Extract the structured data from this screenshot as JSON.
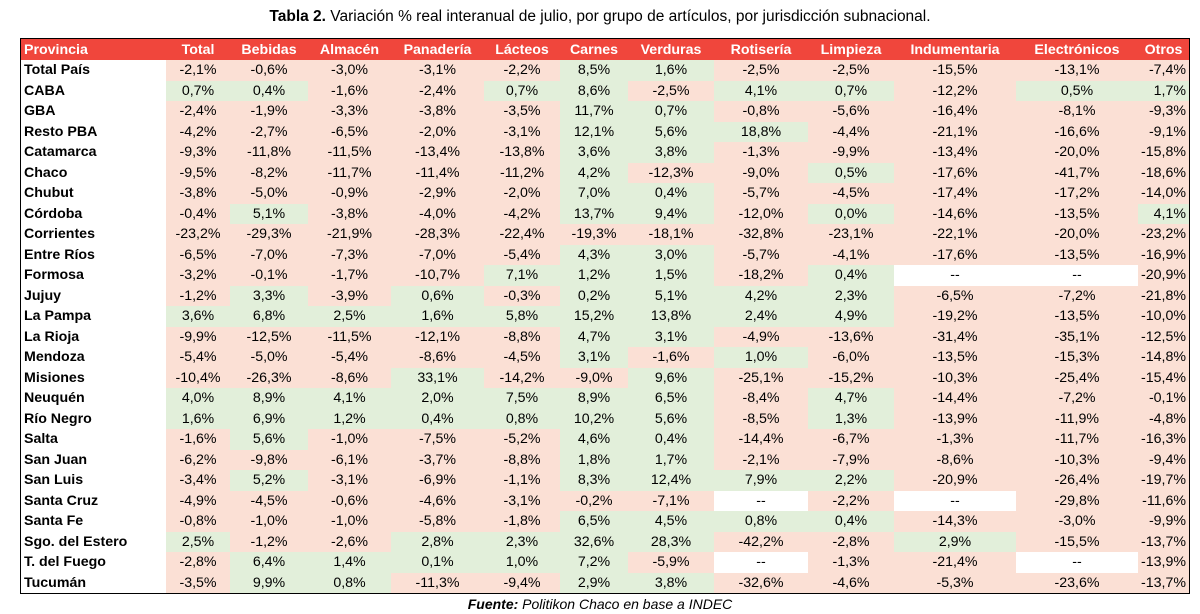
{
  "title": {
    "bold": "Tabla 2.",
    "rest": " Variación % real interanual de julio, por grupo de artículos, por jurisdicción subnacional."
  },
  "table": {
    "headers": [
      "Provincia",
      "Total",
      "Bebidas",
      "Almacén",
      "Panadería",
      "Lácteos",
      "Carnes",
      "Verduras",
      "Rotisería",
      "Limpieza",
      "Indumentaria",
      "Electrónicos",
      "Otros"
    ],
    "rows": [
      {
        "name": "Total País",
        "values": [
          "-2,1%",
          "-0,6%",
          "-3,0%",
          "-3,1%",
          "-2,2%",
          "8,5%",
          "1,6%",
          "-2,5%",
          "-2,5%",
          "-15,5%",
          "-13,1%",
          "-7,4%"
        ]
      },
      {
        "name": "CABA",
        "values": [
          "0,7%",
          "0,4%",
          "-1,6%",
          "-2,4%",
          "0,7%",
          "8,6%",
          "-2,5%",
          "4,1%",
          "0,7%",
          "-12,2%",
          "0,5%",
          "1,7%"
        ]
      },
      {
        "name": "GBA",
        "values": [
          "-2,4%",
          "-1,9%",
          "-3,3%",
          "-3,8%",
          "-3,5%",
          "11,7%",
          "0,7%",
          "-0,8%",
          "-5,6%",
          "-16,4%",
          "-8,1%",
          "-9,3%"
        ]
      },
      {
        "name": "Resto PBA",
        "values": [
          "-4,2%",
          "-2,7%",
          "-6,5%",
          "-2,0%",
          "-3,1%",
          "12,1%",
          "5,6%",
          "18,8%",
          "-4,4%",
          "-21,1%",
          "-16,6%",
          "-9,1%"
        ]
      },
      {
        "name": "Catamarca",
        "values": [
          "-9,3%",
          "-11,8%",
          "-11,5%",
          "-13,4%",
          "-13,8%",
          "3,6%",
          "3,8%",
          "-1,3%",
          "-9,9%",
          "-13,4%",
          "-20,0%",
          "-15,8%"
        ]
      },
      {
        "name": "Chaco",
        "values": [
          "-9,5%",
          "-8,2%",
          "-11,7%",
          "-11,4%",
          "-11,2%",
          "4,2%",
          "-12,3%",
          "-9,0%",
          "0,5%",
          "-17,6%",
          "-41,7%",
          "-18,6%"
        ]
      },
      {
        "name": "Chubut",
        "values": [
          "-3,8%",
          "-5,0%",
          "-0,9%",
          "-2,9%",
          "-2,0%",
          "7,0%",
          "0,4%",
          "-5,7%",
          "-4,5%",
          "-17,4%",
          "-17,2%",
          "-14,0%"
        ]
      },
      {
        "name": "Córdoba",
        "values": [
          "-0,4%",
          "5,1%",
          "-3,8%",
          "-4,0%",
          "-4,2%",
          "13,7%",
          "9,4%",
          "-12,0%",
          "0,0%",
          "-14,6%",
          "-13,5%",
          "4,1%"
        ]
      },
      {
        "name": "Corrientes",
        "values": [
          "-23,2%",
          "-29,3%",
          "-21,9%",
          "-28,3%",
          "-22,4%",
          "-19,3%",
          "-18,1%",
          "-32,8%",
          "-23,1%",
          "-22,1%",
          "-20,0%",
          "-23,2%"
        ]
      },
      {
        "name": "Entre Ríos",
        "values": [
          "-6,5%",
          "-7,0%",
          "-7,3%",
          "-7,0%",
          "-5,4%",
          "4,3%",
          "3,0%",
          "-5,7%",
          "-4,1%",
          "-17,6%",
          "-13,5%",
          "-16,9%"
        ]
      },
      {
        "name": "Formosa",
        "values": [
          "-3,2%",
          "-0,1%",
          "-1,7%",
          "-10,7%",
          "7,1%",
          "1,2%",
          "1,5%",
          "-18,2%",
          "0,4%",
          "--",
          "--",
          "-20,9%"
        ]
      },
      {
        "name": "Jujuy",
        "values": [
          "-1,2%",
          "3,3%",
          "-3,9%",
          "0,6%",
          "-0,3%",
          "0,2%",
          "5,1%",
          "4,2%",
          "2,3%",
          "-6,5%",
          "-7,2%",
          "-21,8%"
        ]
      },
      {
        "name": "La Pampa",
        "values": [
          "3,6%",
          "6,8%",
          "2,5%",
          "1,6%",
          "5,8%",
          "15,2%",
          "13,8%",
          "2,4%",
          "4,9%",
          "-19,2%",
          "-13,5%",
          "-10,0%"
        ]
      },
      {
        "name": "La Rioja",
        "values": [
          "-9,9%",
          "-12,5%",
          "-11,5%",
          "-12,1%",
          "-8,8%",
          "4,7%",
          "3,1%",
          "-4,9%",
          "-13,6%",
          "-31,4%",
          "-35,1%",
          "-12,5%"
        ]
      },
      {
        "name": "Mendoza",
        "values": [
          "-5,4%",
          "-5,0%",
          "-5,4%",
          "-8,6%",
          "-4,5%",
          "3,1%",
          "-1,6%",
          "1,0%",
          "-6,0%",
          "-13,5%",
          "-15,3%",
          "-14,8%"
        ]
      },
      {
        "name": "Misiones",
        "values": [
          "-10,4%",
          "-26,3%",
          "-8,6%",
          "33,1%",
          "-14,2%",
          "-9,0%",
          "9,6%",
          "-25,1%",
          "-15,2%",
          "-10,3%",
          "-25,4%",
          "-15,4%"
        ]
      },
      {
        "name": "Neuquén",
        "values": [
          "4,0%",
          "8,9%",
          "4,1%",
          "2,0%",
          "7,5%",
          "8,9%",
          "6,5%",
          "-8,4%",
          "4,7%",
          "-14,4%",
          "-7,2%",
          "-0,1%"
        ]
      },
      {
        "name": "Río Negro",
        "values": [
          "1,6%",
          "6,9%",
          "1,2%",
          "0,4%",
          "0,8%",
          "10,2%",
          "5,6%",
          "-8,5%",
          "1,3%",
          "-13,9%",
          "-11,9%",
          "-4,8%"
        ]
      },
      {
        "name": "Salta",
        "values": [
          "-1,6%",
          "5,6%",
          "-1,0%",
          "-7,5%",
          "-5,2%",
          "4,6%",
          "0,4%",
          "-14,4%",
          "-6,7%",
          "-1,3%",
          "-11,7%",
          "-16,3%"
        ]
      },
      {
        "name": "San Juan",
        "values": [
          "-6,2%",
          "-9,8%",
          "-6,1%",
          "-3,7%",
          "-8,8%",
          "1,8%",
          "1,7%",
          "-2,1%",
          "-7,9%",
          "-8,6%",
          "-10,3%",
          "-9,4%"
        ]
      },
      {
        "name": "San Luis",
        "values": [
          "-3,4%",
          "5,2%",
          "-3,1%",
          "-6,9%",
          "-1,1%",
          "8,3%",
          "12,4%",
          "7,9%",
          "2,2%",
          "-20,9%",
          "-26,4%",
          "-19,7%"
        ]
      },
      {
        "name": "Santa Cruz",
        "values": [
          "-4,9%",
          "-4,5%",
          "-0,6%",
          "-4,6%",
          "-3,1%",
          "-0,2%",
          "-7,1%",
          "--",
          "-2,2%",
          "--",
          "-29,8%",
          "-11,6%"
        ]
      },
      {
        "name": "Santa Fe",
        "values": [
          "-0,8%",
          "-1,0%",
          "-1,0%",
          "-5,8%",
          "-1,8%",
          "6,5%",
          "4,5%",
          "0,8%",
          "0,4%",
          "-14,3%",
          "-3,0%",
          "-9,9%"
        ]
      },
      {
        "name": "Sgo. del Estero",
        "values": [
          "2,5%",
          "-1,2%",
          "-2,6%",
          "2,8%",
          "2,3%",
          "32,6%",
          "28,3%",
          "-42,2%",
          "-2,8%",
          "2,9%",
          "-15,5%",
          "-13,7%"
        ]
      },
      {
        "name": "T. del Fuego",
        "values": [
          "-2,8%",
          "6,4%",
          "1,4%",
          "0,1%",
          "1,0%",
          "7,2%",
          "-5,9%",
          "--",
          "-1,3%",
          "-21,4%",
          "--",
          "-13,9%"
        ]
      },
      {
        "name": "Tucumán",
        "values": [
          "-3,5%",
          "9,9%",
          "0,8%",
          "-11,3%",
          "-9,4%",
          "2,9%",
          "3,8%",
          "-32,6%",
          "-4,6%",
          "-5,3%",
          "-23,6%",
          "-13,7%"
        ]
      }
    ]
  },
  "footer": {
    "bold": "Fuente:",
    "rest": " Politikon Chaco en base a INDEC"
  },
  "colors": {
    "header_bg": "#f0463c",
    "negative_bg": "#fbe0d5",
    "positive_bg": "#e2efda"
  }
}
